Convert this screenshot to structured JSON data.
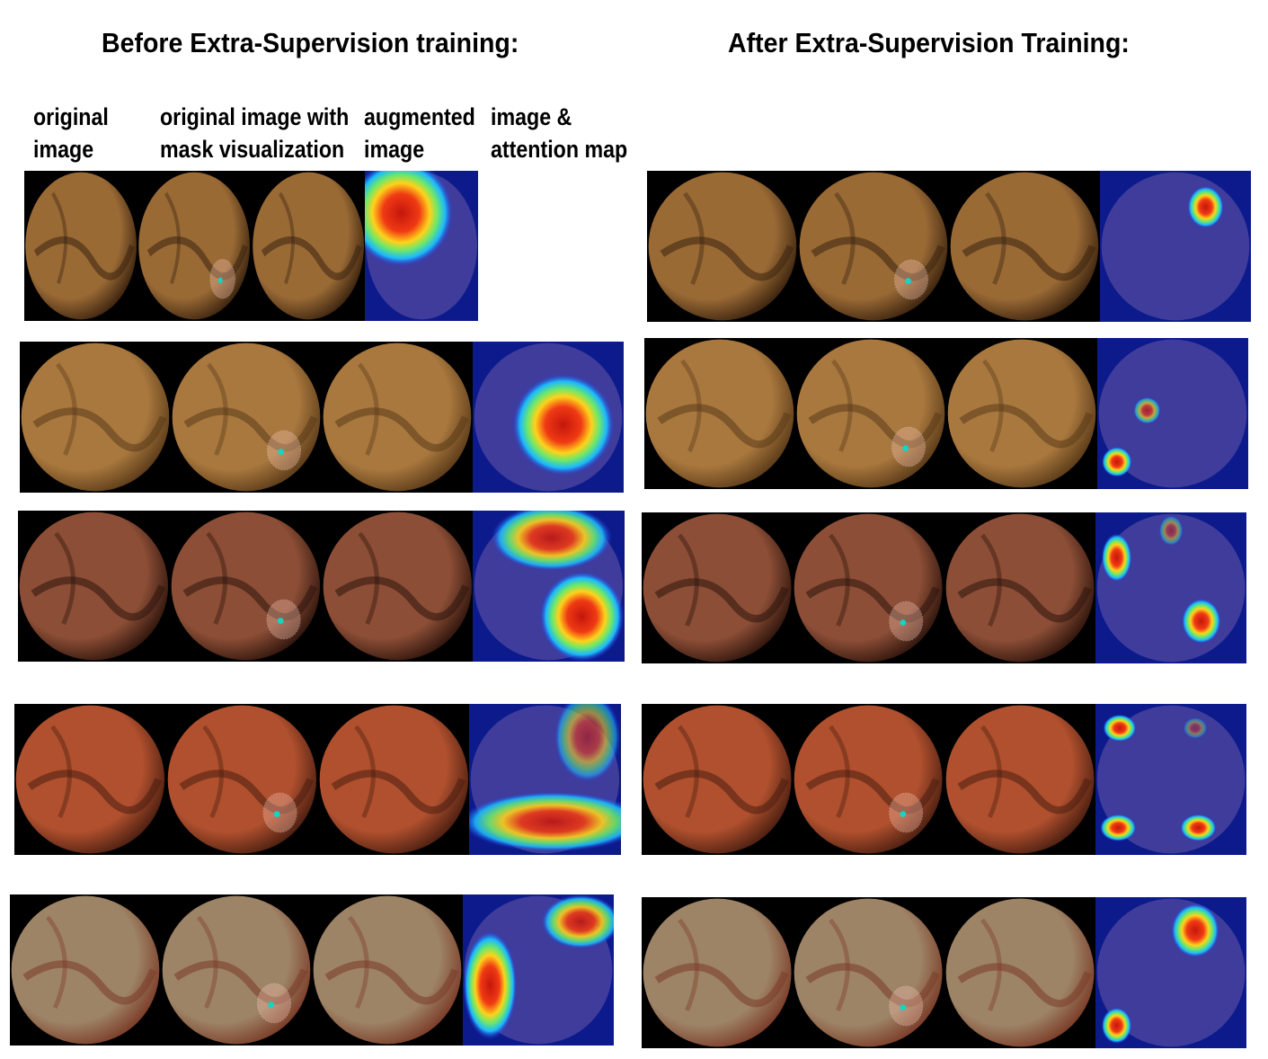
{
  "titles": {
    "before": "Before Extra-Supervision training:",
    "after": "After Extra-Supervision Training:"
  },
  "column_headers": [
    "original\nimage",
    "original image with\nmask visualization",
    "augmented\nimage",
    "image &\nattention map"
  ],
  "panels": {
    "before": [
      {
        "tissue": "#9a6a35",
        "shade": "#3a220e",
        "attention": "top-left-large"
      },
      {
        "tissue": "#a9783e",
        "shade": "#5a3a18",
        "attention": "center-large"
      },
      {
        "tissue": "#8c4e36",
        "shade": "#2e140c",
        "attention": "top-and-bottom-right"
      },
      {
        "tissue": "#b0502e",
        "shade": "#4a1e10",
        "attention": "bottom-band"
      },
      {
        "tissue": "#9e8466",
        "shade": "#7a3a26",
        "attention": "left-band-top-right"
      }
    ],
    "after": [
      {
        "tissue": "#9a6a35",
        "shade": "#3a220e",
        "attention": "small-top-right"
      },
      {
        "tissue": "#a9783e",
        "shade": "#5a3a18",
        "attention": "two-small-left"
      },
      {
        "tissue": "#8c4e36",
        "shade": "#2e140c",
        "attention": "left-and-bottom-right"
      },
      {
        "tissue": "#b0502e",
        "shade": "#4a1e10",
        "attention": "three-corners"
      },
      {
        "tissue": "#9e8466",
        "shade": "#7a3a26",
        "attention": "top-right-bottom-left"
      }
    ]
  }
}
